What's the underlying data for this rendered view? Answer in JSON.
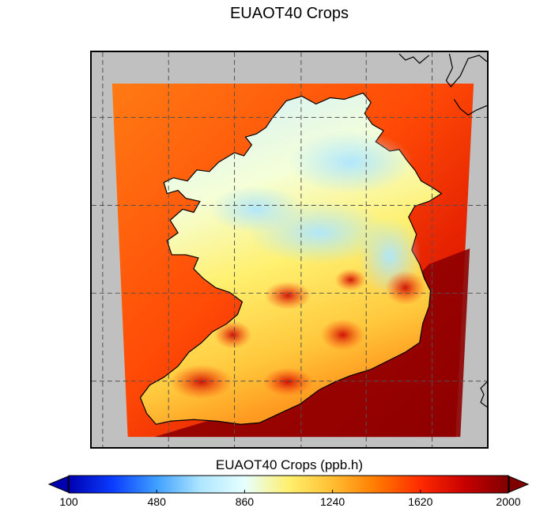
{
  "title": "EUAOT40 Crops",
  "colorbar": {
    "label": "EUAOT40 Crops (ppb.h)",
    "ticks": [
      "100",
      "480",
      "860",
      "1240",
      "1620",
      "2000"
    ],
    "min": 100,
    "max": 2000,
    "colormap": [
      "#0000b0",
      "#0a3cff",
      "#3fa0ff",
      "#aee6ff",
      "#e6ffff",
      "#fff06e",
      "#ffbe32",
      "#ff7a00",
      "#ff2a00",
      "#c80000",
      "#800000"
    ],
    "extend_low_color": "#0000b0",
    "extend_high_color": "#800000"
  },
  "colors": {
    "land_mask": "#c0c0c0",
    "gridline": "#505050",
    "coastline": "#000000"
  }
}
